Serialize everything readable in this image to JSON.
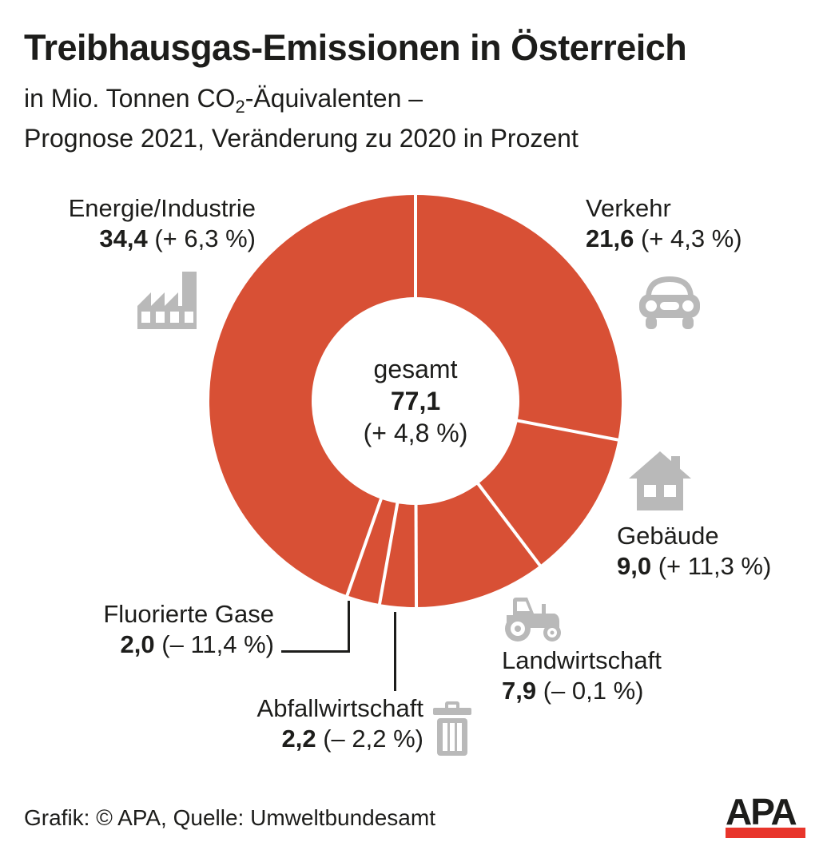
{
  "header": {
    "title": "Treibhausgas-Emissionen in Österreich",
    "subtitle_line1_pre": "in Mio. Tonnen CO",
    "subtitle_line1_sub": "2",
    "subtitle_line1_post": "-Äquivalenten –",
    "subtitle_line2": "Prognose 2021, Veränderung zu 2020 in Prozent"
  },
  "chart_data": {
    "type": "pie",
    "variant": "donut",
    "start_angle_deg": 0,
    "direction": "clockwise",
    "total": 77.1,
    "center": {
      "label": "gesamt",
      "value": 77.1,
      "value_label": "77,1",
      "change_label": "(+ 4,8 %)"
    },
    "segments": [
      {
        "name": "Verkehr",
        "value": 21.6,
        "value_label": "21,6",
        "change_label": "(+ 4,3 %)",
        "icon": "car-icon"
      },
      {
        "name": "Gebäude",
        "value": 9.0,
        "value_label": "9,0",
        "change_label": "(+ 11,3 %)",
        "icon": "house-icon"
      },
      {
        "name": "Landwirtschaft",
        "value": 7.9,
        "value_label": "7,9",
        "change_label": "(– 0,1 %)",
        "icon": "tractor-icon"
      },
      {
        "name": "Abfallwirtschaft",
        "value": 2.2,
        "value_label": "2,2",
        "change_label": "(– 2,2 %)",
        "icon": "trash-icon"
      },
      {
        "name": "Fluorierte Gase",
        "value": 2.0,
        "value_label": "2,0",
        "change_label": "(– 11,4 %)",
        "icon": null
      },
      {
        "name": "Energie/Industrie",
        "value": 34.4,
        "value_label": "34,4",
        "change_label": "(+ 6,3 %)",
        "icon": "factory-icon"
      }
    ],
    "colors": {
      "segment_fill": "#d85035",
      "divider": "#ffffff",
      "icon_gray": "#b9b9b9",
      "text": "#1d1d1b",
      "logo_red": "#e8352b"
    }
  },
  "footer": {
    "credit": "Grafik: © APA, Quelle: Umweltbundesamt",
    "logo_text": "APA"
  }
}
